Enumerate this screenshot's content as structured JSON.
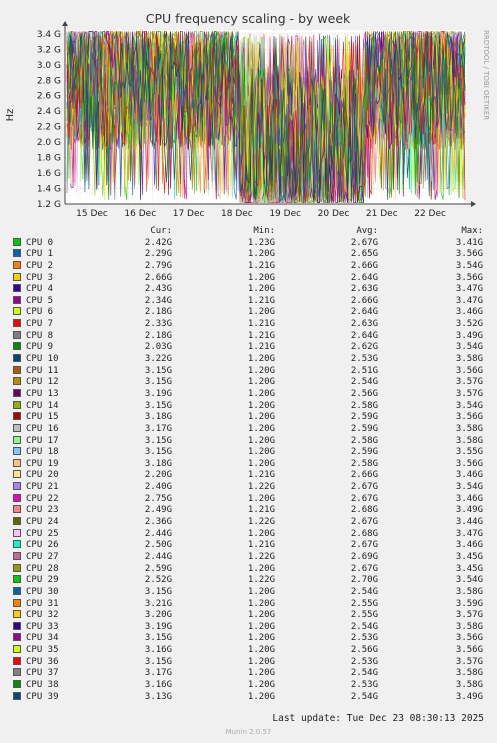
{
  "chart_data": {
    "type": "line",
    "title": "CPU frequency scaling - by week",
    "ylabel": "Hz",
    "yticks": [
      "1.2 G",
      "1.4 G",
      "1.6 G",
      "1.8 G",
      "2.0 G",
      "2.2 G",
      "2.4 G",
      "2.6 G",
      "2.8 G",
      "3.0 G",
      "3.2 G",
      "3.4 G"
    ],
    "ylim": [
      1200000000,
      3450000000
    ],
    "xticks": [
      "15 Dec",
      "16 Dec",
      "17 Dec",
      "18 Dec",
      "19 Dec",
      "20 Dec",
      "21 Dec",
      "22 Dec"
    ],
    "grid": true,
    "side_label": "RRDTOOL / TOBI OETIKER",
    "columns": {
      "cur": "Cur:",
      "min": "Min:",
      "avg": "Avg:",
      "max": "Max:"
    },
    "series": [
      {
        "name": "CPU 0",
        "color": "#00cc00",
        "cur": "2.42G",
        "min": "1.23G",
        "avg": "2.67G",
        "max": "3.41G"
      },
      {
        "name": "CPU 1",
        "color": "#0066b3",
        "cur": "2.29G",
        "min": "1.20G",
        "avg": "2.65G",
        "max": "3.56G"
      },
      {
        "name": "CPU 2",
        "color": "#ff8000",
        "cur": "2.79G",
        "min": "1.21G",
        "avg": "2.66G",
        "max": "3.54G"
      },
      {
        "name": "CPU 3",
        "color": "#ffcc00",
        "cur": "2.66G",
        "min": "1.20G",
        "avg": "2.64G",
        "max": "3.56G"
      },
      {
        "name": "CPU 4",
        "color": "#330099",
        "cur": "2.43G",
        "min": "1.20G",
        "avg": "2.63G",
        "max": "3.47G"
      },
      {
        "name": "CPU 5",
        "color": "#990099",
        "cur": "2.34G",
        "min": "1.21G",
        "avg": "2.66G",
        "max": "3.47G"
      },
      {
        "name": "CPU 6",
        "color": "#ccff00",
        "cur": "2.18G",
        "min": "1.20G",
        "avg": "2.64G",
        "max": "3.46G"
      },
      {
        "name": "CPU 7",
        "color": "#ff0000",
        "cur": "2.33G",
        "min": "1.21G",
        "avg": "2.63G",
        "max": "3.52G"
      },
      {
        "name": "CPU 8",
        "color": "#808080",
        "cur": "2.18G",
        "min": "1.21G",
        "avg": "2.64G",
        "max": "3.49G"
      },
      {
        "name": "CPU 9",
        "color": "#008f00",
        "cur": "2.03G",
        "min": "1.21G",
        "avg": "2.62G",
        "max": "3.54G"
      },
      {
        "name": "CPU 10",
        "color": "#00487d",
        "cur": "3.22G",
        "min": "1.20G",
        "avg": "2.53G",
        "max": "3.58G"
      },
      {
        "name": "CPU 11",
        "color": "#b35a00",
        "cur": "3.15G",
        "min": "1.20G",
        "avg": "2.51G",
        "max": "3.56G"
      },
      {
        "name": "CPU 12",
        "color": "#b38f00",
        "cur": "3.15G",
        "min": "1.20G",
        "avg": "2.54G",
        "max": "3.57G"
      },
      {
        "name": "CPU 13",
        "color": "#6b006b",
        "cur": "3.19G",
        "min": "1.20G",
        "avg": "2.56G",
        "max": "3.57G"
      },
      {
        "name": "CPU 14",
        "color": "#8fb300",
        "cur": "3.15G",
        "min": "1.20G",
        "avg": "2.58G",
        "max": "3.54G"
      },
      {
        "name": "CPU 15",
        "color": "#b30000",
        "cur": "3.18G",
        "min": "1.20G",
        "avg": "2.59G",
        "max": "3.56G"
      },
      {
        "name": "CPU 16",
        "color": "#bebebe",
        "cur": "3.17G",
        "min": "1.20G",
        "avg": "2.59G",
        "max": "3.58G"
      },
      {
        "name": "CPU 17",
        "color": "#80ff80",
        "cur": "3.15G",
        "min": "1.20G",
        "avg": "2.58G",
        "max": "3.58G"
      },
      {
        "name": "CPU 18",
        "color": "#80c9ff",
        "cur": "3.15G",
        "min": "1.20G",
        "avg": "2.59G",
        "max": "3.55G"
      },
      {
        "name": "CPU 19",
        "color": "#ffc080",
        "cur": "3.18G",
        "min": "1.20G",
        "avg": "2.58G",
        "max": "3.56G"
      },
      {
        "name": "CPU 20",
        "color": "#ffe680",
        "cur": "2.20G",
        "min": "1.21G",
        "avg": "2.66G",
        "max": "3.46G"
      },
      {
        "name": "CPU 21",
        "color": "#aa80ff",
        "cur": "2.40G",
        "min": "1.22G",
        "avg": "2.67G",
        "max": "3.54G"
      },
      {
        "name": "CPU 22",
        "color": "#ee00cc",
        "cur": "2.75G",
        "min": "1.20G",
        "avg": "2.67G",
        "max": "3.46G"
      },
      {
        "name": "CPU 23",
        "color": "#ff8080",
        "cur": "2.49G",
        "min": "1.21G",
        "avg": "2.68G",
        "max": "3.49G"
      },
      {
        "name": "CPU 24",
        "color": "#666600",
        "cur": "2.36G",
        "min": "1.22G",
        "avg": "2.67G",
        "max": "3.44G"
      },
      {
        "name": "CPU 25",
        "color": "#ffbfff",
        "cur": "2.44G",
        "min": "1.20G",
        "avg": "2.68G",
        "max": "3.47G"
      },
      {
        "name": "CPU 26",
        "color": "#00ffcc",
        "cur": "2.50G",
        "min": "1.21G",
        "avg": "2.67G",
        "max": "3.46G"
      },
      {
        "name": "CPU 27",
        "color": "#cc6699",
        "cur": "2.44G",
        "min": "1.22G",
        "avg": "2.69G",
        "max": "3.45G"
      },
      {
        "name": "CPU 28",
        "color": "#999900",
        "cur": "2.59G",
        "min": "1.20G",
        "avg": "2.67G",
        "max": "3.45G"
      },
      {
        "name": "CPU 29",
        "color": "#00cc00",
        "cur": "2.52G",
        "min": "1.22G",
        "avg": "2.70G",
        "max": "3.54G"
      },
      {
        "name": "CPU 30",
        "color": "#0066b3",
        "cur": "3.15G",
        "min": "1.20G",
        "avg": "2.54G",
        "max": "3.58G"
      },
      {
        "name": "CPU 31",
        "color": "#ff8000",
        "cur": "3.21G",
        "min": "1.20G",
        "avg": "2.55G",
        "max": "3.59G"
      },
      {
        "name": "CPU 32",
        "color": "#ffcc00",
        "cur": "3.20G",
        "min": "1.20G",
        "avg": "2.55G",
        "max": "3.57G"
      },
      {
        "name": "CPU 33",
        "color": "#330099",
        "cur": "3.19G",
        "min": "1.20G",
        "avg": "2.54G",
        "max": "3.58G"
      },
      {
        "name": "CPU 34",
        "color": "#990099",
        "cur": "3.15G",
        "min": "1.20G",
        "avg": "2.53G",
        "max": "3.56G"
      },
      {
        "name": "CPU 35",
        "color": "#ccff00",
        "cur": "3.16G",
        "min": "1.20G",
        "avg": "2.56G",
        "max": "3.56G"
      },
      {
        "name": "CPU 36",
        "color": "#ff0000",
        "cur": "3.15G",
        "min": "1.20G",
        "avg": "2.53G",
        "max": "3.57G"
      },
      {
        "name": "CPU 37",
        "color": "#808080",
        "cur": "3.17G",
        "min": "1.20G",
        "avg": "2.54G",
        "max": "3.58G"
      },
      {
        "name": "CPU 38",
        "color": "#008f00",
        "cur": "3.16G",
        "min": "1.20G",
        "avg": "2.53G",
        "max": "3.58G"
      },
      {
        "name": "CPU 39",
        "color": "#00487d",
        "cur": "3.13G",
        "min": "1.20G",
        "avg": "2.54G",
        "max": "3.49G"
      }
    ]
  },
  "last_update": "Last update: Tue Dec 23 08:30:13 2025",
  "footer": "Munin 2.0.57"
}
